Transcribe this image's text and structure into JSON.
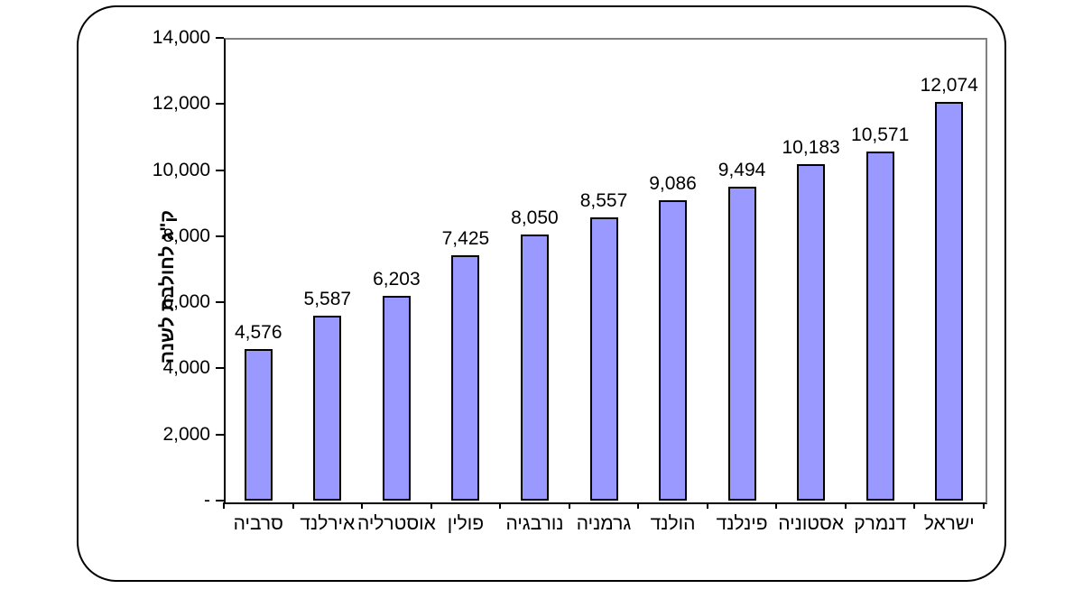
{
  "chart_data": {
    "type": "bar",
    "title": "",
    "xlabel": "",
    "ylabel": "ק\"ג לחולבת לשנה",
    "categories": [
      "סרביה",
      "אירלנד",
      "אוסטרליה",
      "פולין",
      "נורבגיה",
      "גרמניה",
      "הולנד",
      "פינלנד",
      "אסטוניה",
      "דנמרק",
      "ישראל"
    ],
    "values": [
      4576,
      5587,
      6203,
      7425,
      8050,
      8557,
      9086,
      9494,
      10183,
      10571,
      12074
    ],
    "data_labels": [
      "4,576",
      "5,587",
      "6,203",
      "7,425",
      "8,050",
      "8,557",
      "9,086",
      "9,494",
      "10,183",
      "10,571",
      "12,074"
    ],
    "y_ticks": [
      {
        "label": "14,000",
        "value": 14000
      },
      {
        "label": "12,000",
        "value": 12000
      },
      {
        "label": "10,000",
        "value": 10000
      },
      {
        "label": "8,000",
        "value": 8000
      },
      {
        "label": "6,000",
        "value": 6000
      },
      {
        "label": "4,000",
        "value": 4000
      },
      {
        "label": "2,000",
        "value": 2000
      },
      {
        "label": "-",
        "value": 0
      }
    ],
    "ylim": [
      0,
      14000
    ],
    "grid": false,
    "legend": null,
    "colors": {
      "bar_fill": "#9999FF",
      "bar_border": "#000000",
      "axis": "#000000",
      "plot_border": "#808080",
      "frame_border": "#000000",
      "background": "#FFFFFF"
    }
  }
}
